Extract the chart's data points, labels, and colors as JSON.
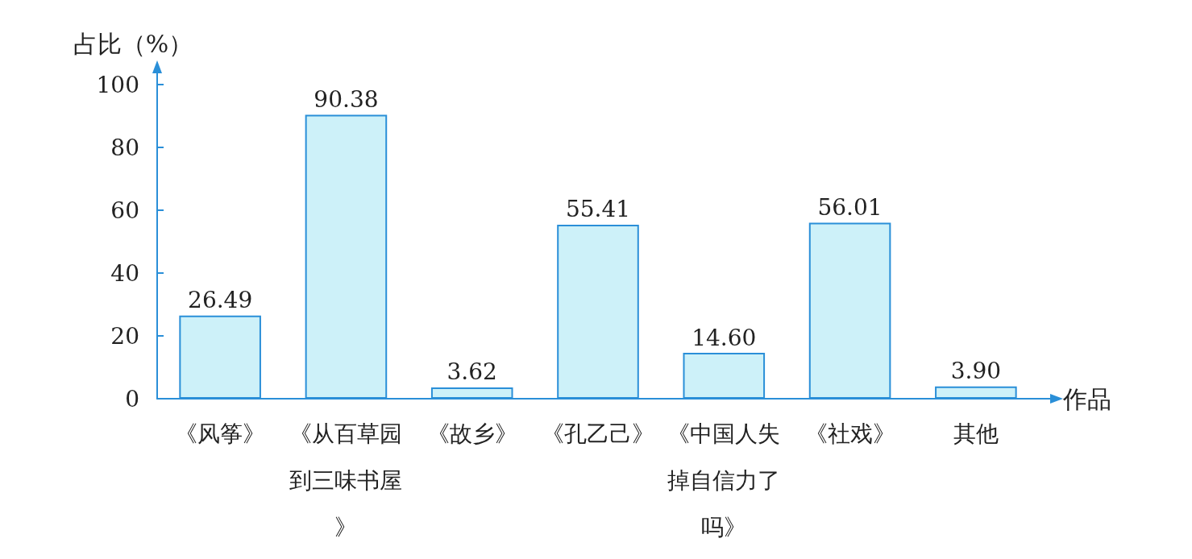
{
  "chart_data": {
    "type": "bar",
    "ylabel": "占比（%）",
    "xlabel": "作品",
    "categories": [
      "《风筝》",
      "《从百草园到三味书屋》",
      "《故乡》",
      "《孔乙己》",
      "《中国人失掉自信力了吗》",
      "《社戏》",
      "其他"
    ],
    "values": [
      26.49,
      90.38,
      3.62,
      55.41,
      14.6,
      56.01,
      3.9
    ],
    "color": "#cdf1f9",
    "ylim": [
      0,
      100
    ],
    "yticks": [
      0,
      20,
      40,
      60,
      80,
      100
    ],
    "value_labels": [
      "26.49",
      "90.38",
      "3.62",
      "55.41",
      "14.60",
      "56.01",
      "3.90"
    ],
    "grid": false
  }
}
